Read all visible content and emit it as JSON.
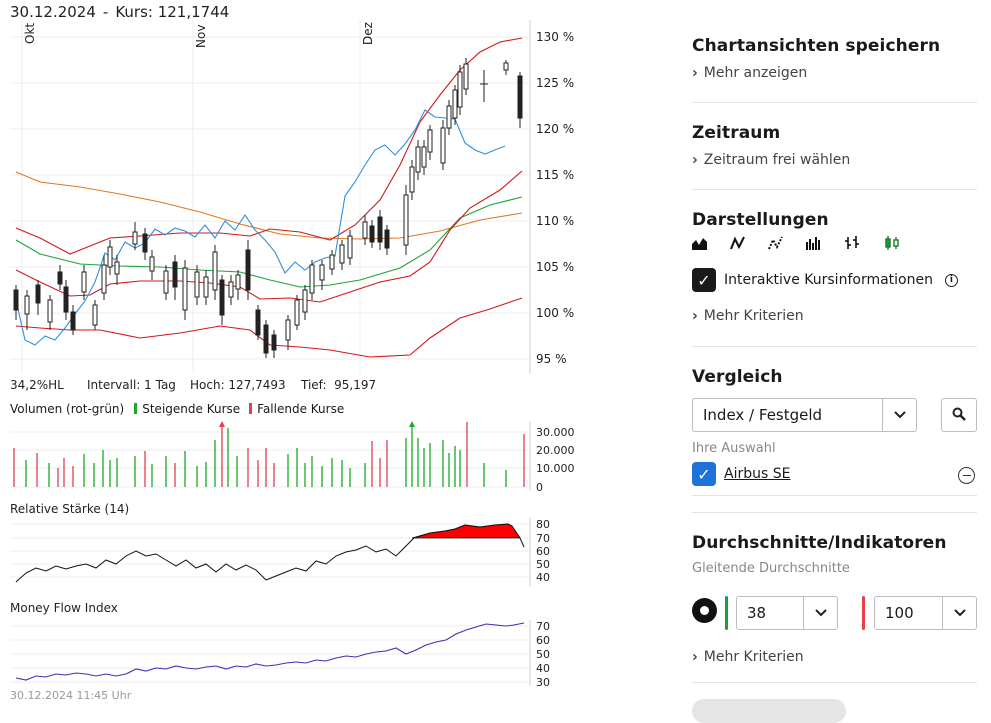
{
  "header": {
    "date": "30.12.2024",
    "separator": "-",
    "quote": "Kurs: 121,1744"
  },
  "price_chart": {
    "months": [
      "Okt",
      "Nov",
      "Dez"
    ],
    "y_ticks": [
      "130 %",
      "125 %",
      "120 %",
      "115 %",
      "110 %",
      "105 %",
      "100 %",
      "95 %"
    ],
    "stats": {
      "range": "34,2%HL",
      "interval": "Intervall: 1 Tag",
      "high": "Hoch: 127,7493",
      "low": "Tief:  95,197"
    }
  },
  "volume_chart": {
    "title": "Volumen (rot-grün)",
    "rising": "Steigende Kurse",
    "falling": "Fallende Kurse",
    "y_ticks": [
      "30.000",
      "20.000",
      "10.000",
      "0"
    ]
  },
  "rsi_chart": {
    "title": "Relative Stärke (14)",
    "y_ticks": [
      "80",
      "70",
      "60",
      "50",
      "40"
    ]
  },
  "mfi_chart": {
    "title": "Money Flow Index",
    "y_ticks": [
      "70",
      "60",
      "50",
      "40",
      "30"
    ]
  },
  "footer": {
    "timestamp": "30.12.2024 11:45 Uhr"
  },
  "panel": {
    "save_views": {
      "title": "Chartansichten speichern",
      "link": "Mehr anzeigen"
    },
    "period": {
      "title": "Zeitraum",
      "link": "Zeitraum frei wählen"
    },
    "display": {
      "title": "Darstellungen",
      "icons": [
        "mountain-chart-icon",
        "line-chart-icon",
        "dotted-line-chart-icon",
        "bar-chart-icon",
        "ohlc-chart-icon",
        "candlestick-chart-icon"
      ],
      "interactive_label": "Interaktive Kursinformationen",
      "more": "Mehr Kriterien"
    },
    "compare": {
      "title": "Vergleich",
      "select_value": "Index / Festgeld",
      "selection_label": "Ihre Auswahl",
      "selected_item": "Airbus SE"
    },
    "indicators": {
      "title": "Durchschnitte/Indikatoren",
      "subtitle": "Gleitende Durchschnitte",
      "ma1": "38",
      "ma2": "100",
      "ma1_color": "#1a9e3a",
      "ma2_color": "#e8414a",
      "more": "Mehr Kriterien"
    }
  },
  "colors": {
    "up": "#1aaa2a",
    "down": "#e04050",
    "blue_series": "#2f8fe0",
    "dark": "#1a1a1a"
  }
}
